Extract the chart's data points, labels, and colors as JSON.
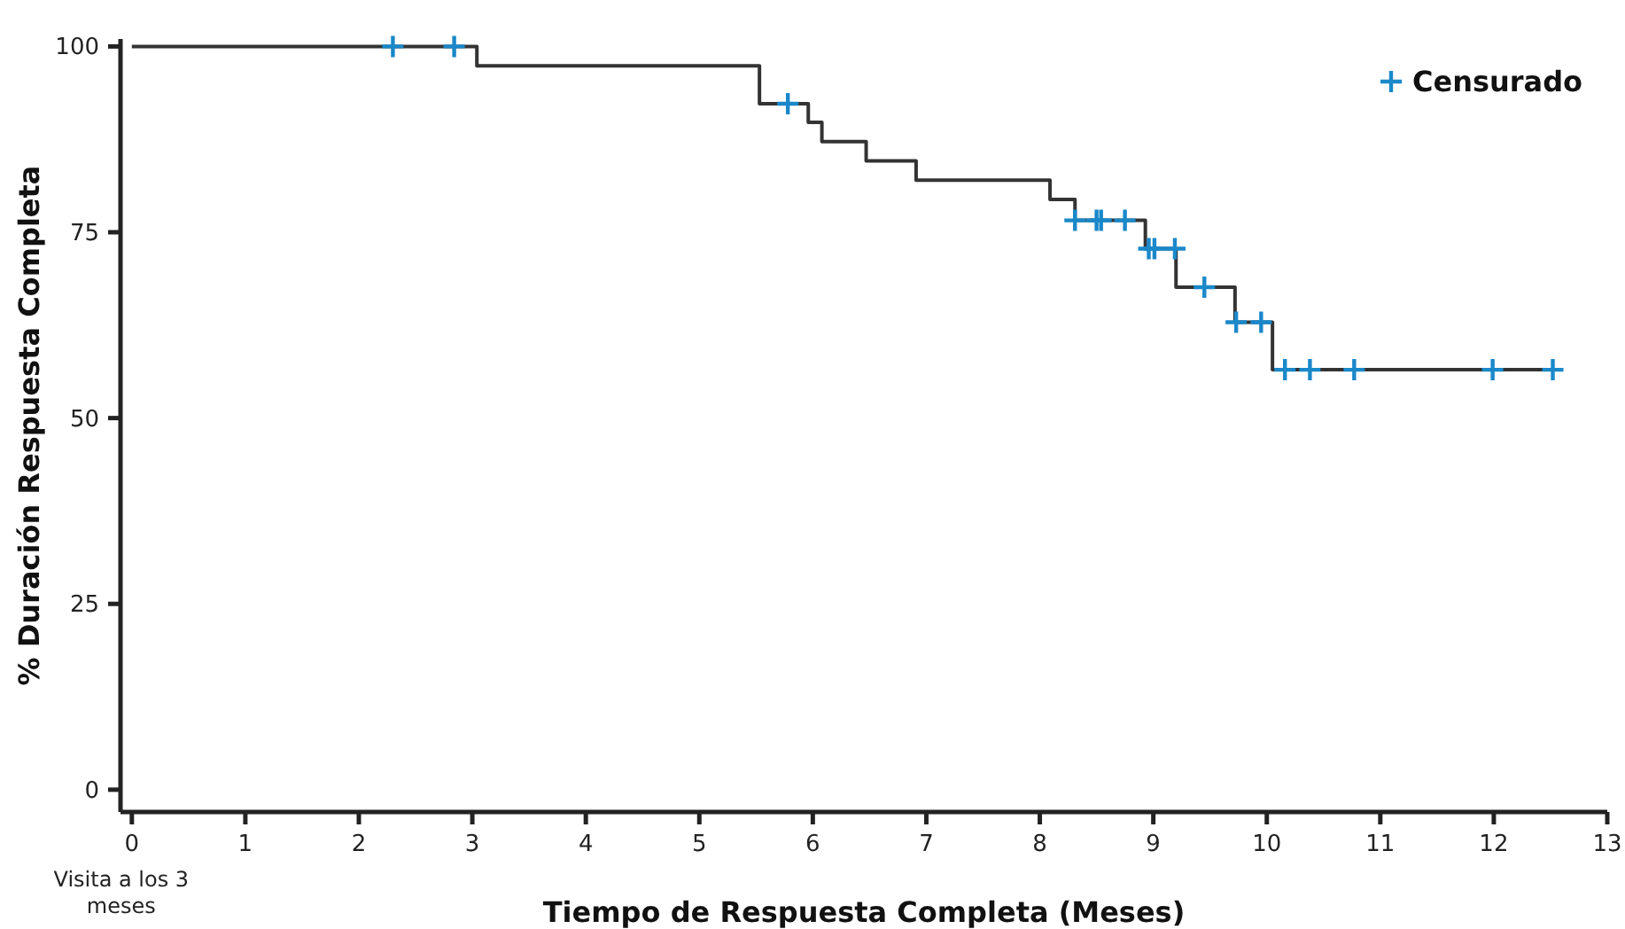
{
  "chart_data": {
    "type": "step",
    "xlabel": "Tiempo de Respuesta Completa (Meses)",
    "ylabel": "% Duración Respuesta Completa",
    "xlim": [
      -0.1,
      13
    ],
    "ylim": [
      -3,
      101
    ],
    "xticks": [
      0,
      1,
      2,
      3,
      4,
      5,
      6,
      7,
      8,
      9,
      10,
      11,
      12,
      13
    ],
    "yticks": [
      0,
      25,
      50,
      75,
      100
    ],
    "grid": false,
    "legend": "top right",
    "annotations": [
      "Visita a los 3 meses"
    ],
    "series": [
      {
        "color": "#333333",
        "line_style": "solid",
        "marker": "none",
        "x": [
          0,
          3.04,
          5.53,
          5.96,
          6.08,
          6.47,
          6.91,
          8.09,
          8.31,
          8.93,
          9.2,
          9.72,
          10.05,
          12.6
        ],
        "values": [
          100,
          97.4,
          92.3,
          89.8,
          87.2,
          84.6,
          82.0,
          79.4,
          76.6,
          72.8,
          67.6,
          62.9,
          56.5,
          56.5
        ]
      },
      {
        "type": "scatter",
        "name": "Censurado",
        "color": "#1a88c9",
        "marker": "cross",
        "x": [
          2.3,
          2.84,
          5.78,
          8.31,
          8.5,
          8.54,
          8.75,
          8.96,
          9.01,
          9.19,
          9.45,
          9.73,
          9.95,
          10.16,
          10.38,
          10.77,
          11.99,
          12.52
        ],
        "values": [
          100,
          100,
          92.3,
          76.6,
          76.6,
          76.6,
          76.6,
          72.8,
          72.8,
          72.8,
          67.6,
          62.9,
          62.9,
          56.5,
          56.5,
          56.5,
          56.5,
          56.5
        ]
      }
    ]
  }
}
